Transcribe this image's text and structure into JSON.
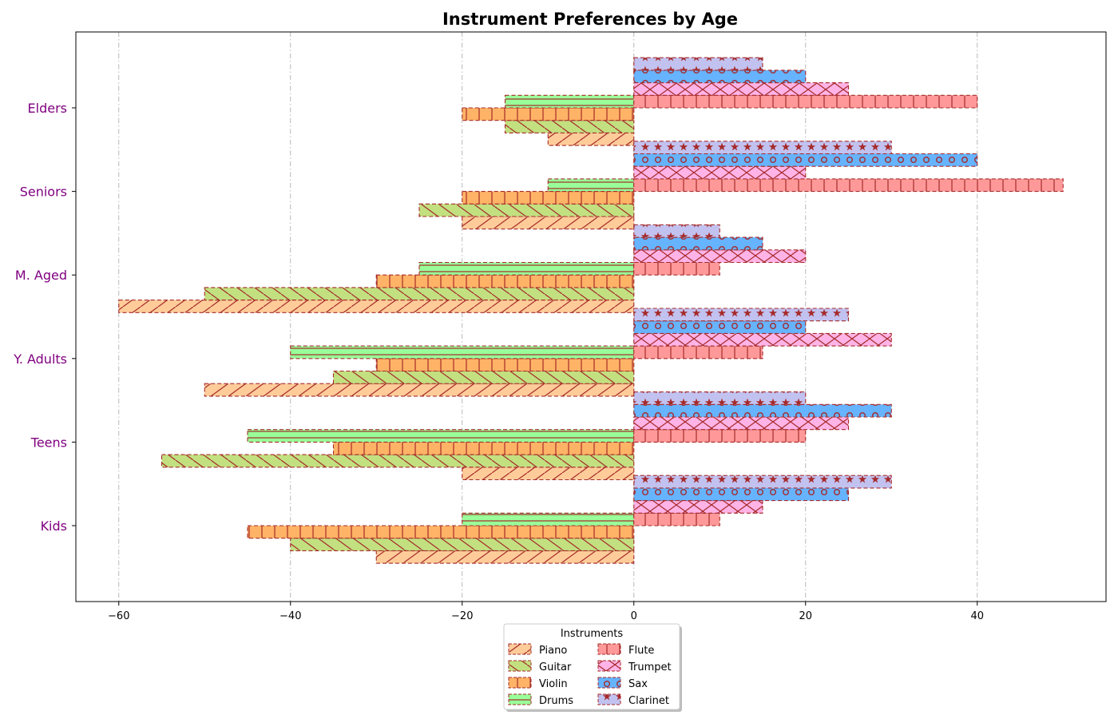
{
  "chart_data": {
    "type": "bar",
    "orientation": "horizontal",
    "title": "Instrument Preferences by Age",
    "xlabel": "",
    "ylabel": "",
    "xlim": [
      -65,
      55
    ],
    "xticks": [
      -60,
      -40,
      -20,
      0,
      20,
      40
    ],
    "grid": "x-dashdot",
    "categories": [
      "Kids",
      "Teens",
      "Y. Adults",
      "M. Aged",
      "Seniors",
      "Elders"
    ],
    "series": [
      {
        "name": "Piano",
        "side": "left",
        "color": "#ffcc99",
        "pattern": "diag-slash",
        "values": [
          -30,
          -20,
          -50,
          -60,
          -20,
          -10
        ]
      },
      {
        "name": "Guitar",
        "side": "left",
        "color": "#c2e080",
        "pattern": "diag-back",
        "values": [
          -40,
          -55,
          -35,
          -50,
          -25,
          -15
        ]
      },
      {
        "name": "Violin",
        "side": "left",
        "color": "#ffb366",
        "pattern": "vertical",
        "values": [
          -45,
          -35,
          -30,
          -30,
          -20,
          -20
        ]
      },
      {
        "name": "Drums",
        "side": "left",
        "color": "#99ff99",
        "pattern": "horizontal",
        "values": [
          -20,
          -45,
          -40,
          -25,
          -10,
          -15
        ]
      },
      {
        "name": "Flute",
        "side": "right",
        "color": "#ff9999",
        "pattern": "vertical",
        "values": [
          10,
          20,
          15,
          10,
          50,
          40
        ]
      },
      {
        "name": "Trumpet",
        "side": "right",
        "color": "#ffb3e6",
        "pattern": "cross",
        "values": [
          15,
          25,
          30,
          20,
          20,
          25
        ]
      },
      {
        "name": "Sax",
        "side": "right",
        "color": "#66b3ff",
        "pattern": "circles",
        "values": [
          25,
          30,
          20,
          15,
          40,
          20
        ]
      },
      {
        "name": "Clarinet",
        "side": "right",
        "color": "#c2c2f0",
        "pattern": "stars",
        "values": [
          30,
          20,
          25,
          10,
          30,
          15
        ]
      }
    ],
    "ytick_color": "#800080",
    "hatch_color": "#a52a2a",
    "legend": {
      "title": "Instruments",
      "placement": "bottom-center",
      "columns": 2
    }
  }
}
